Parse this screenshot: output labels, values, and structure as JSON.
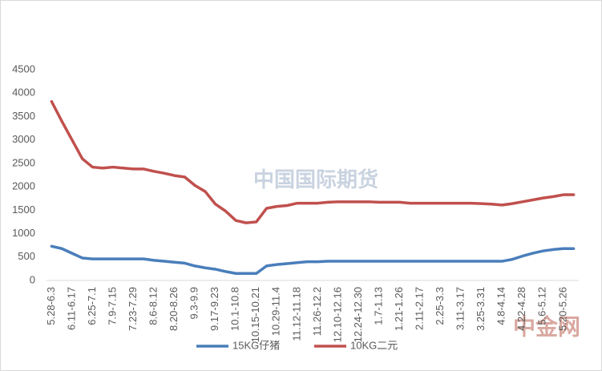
{
  "chart_data": {
    "type": "line",
    "categories": [
      "5.28-6.3",
      null,
      "6.11-6.17",
      null,
      "6.25-7.1",
      null,
      "7.9-7.15",
      null,
      "7.23-7.29",
      null,
      "8.6-8.12",
      null,
      "8.20-8.26",
      null,
      "9.3-9.9",
      null,
      "9.17-9.23",
      null,
      "10.1-10.8",
      null,
      "10.15-10.21",
      null,
      "10.29-11.4",
      null,
      "11.12-11.18",
      null,
      "11.26-12.2",
      null,
      "12.10-12.16",
      null,
      "12.24-12.30",
      null,
      "1.7-1.13",
      null,
      "1.21-1.26",
      null,
      "2.11-2.17",
      null,
      "2.25-3.3",
      null,
      "3.11-3.17",
      null,
      "3.25-3.31",
      null,
      "4.8-4.14",
      null,
      "4.22-4.28",
      null,
      "5.6-5.12",
      null,
      "5.20-5.26",
      null
    ],
    "series": [
      {
        "name": "15KG仔猪",
        "color": "#4a7ebb",
        "values": [
          730,
          680,
          580,
          480,
          460,
          460,
          460,
          460,
          460,
          460,
          430,
          410,
          390,
          370,
          310,
          270,
          240,
          190,
          150,
          150,
          150,
          310,
          340,
          360,
          380,
          400,
          400,
          410,
          410,
          410,
          410,
          410,
          410,
          410,
          410,
          410,
          410,
          410,
          410,
          410,
          410,
          410,
          410,
          410,
          410,
          450,
          520,
          580,
          630,
          660,
          680,
          680
        ]
      },
      {
        "name": "10KG二元",
        "color": "#c0504d",
        "values": [
          3820,
          3400,
          3000,
          2600,
          2420,
          2400,
          2420,
          2400,
          2380,
          2380,
          2330,
          2290,
          2240,
          2210,
          2030,
          1900,
          1630,
          1480,
          1280,
          1230,
          1250,
          1540,
          1580,
          1600,
          1650,
          1650,
          1650,
          1670,
          1680,
          1680,
          1680,
          1680,
          1670,
          1670,
          1670,
          1650,
          1650,
          1650,
          1650,
          1650,
          1650,
          1650,
          1640,
          1630,
          1610,
          1640,
          1680,
          1720,
          1760,
          1790,
          1830,
          1830
        ]
      }
    ],
    "ylim": [
      0,
      4500
    ],
    "yticks": [
      0,
      500,
      1000,
      1500,
      2000,
      2500,
      3000,
      3500,
      4000,
      4500
    ],
    "grid": false,
    "legend": "bottom",
    "watermarks": [
      "中国国际期货",
      "中金网"
    ]
  }
}
